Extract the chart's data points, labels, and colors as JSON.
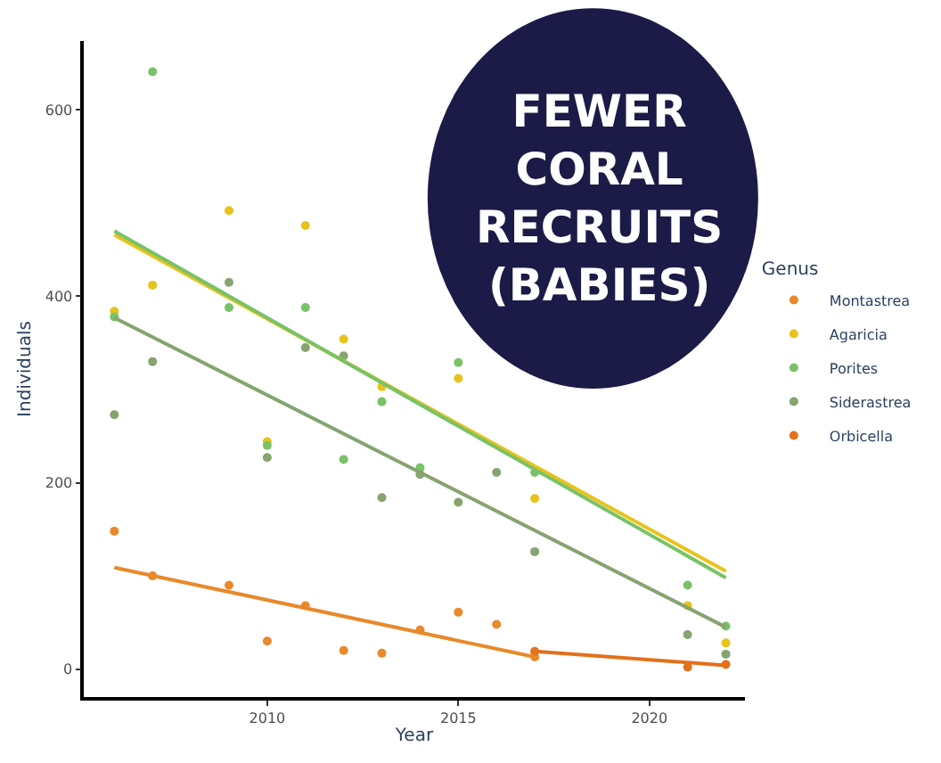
{
  "chart_data": {
    "type": "scatter",
    "xlabel": "Year",
    "ylabel": "Individuals",
    "legend_title": "Genus",
    "legend": "right",
    "xlim": [
      2005.2,
      2022.5
    ],
    "xticks": [
      2010,
      2015,
      2020
    ],
    "ylim": [
      -30,
      674
    ],
    "yticks": [
      0,
      200,
      400,
      600
    ],
    "annotations": [
      "FEWER\nCORAL\nRECRUITS\n(BABIES)"
    ],
    "series": [
      {
        "name": "Montastrea",
        "color": "#e8892b",
        "x": [
          2006,
          2007,
          2009,
          2010,
          2011,
          2012,
          2013,
          2014,
          2015,
          2016,
          2017
        ],
        "values": [
          148,
          100,
          90,
          30,
          68,
          20,
          17,
          42,
          61,
          48,
          13
        ]
      },
      {
        "name": "Agaricia",
        "color": "#e8c31a",
        "x": [
          2006,
          2007,
          2009,
          2010,
          2011,
          2012,
          2013,
          2015,
          2017,
          2021,
          2022
        ],
        "values": [
          384,
          412,
          492,
          244,
          476,
          354,
          303,
          312,
          183,
          68,
          28
        ]
      },
      {
        "name": "Porites",
        "color": "#79c267",
        "x": [
          2006,
          2007,
          2009,
          2010,
          2011,
          2012,
          2013,
          2014,
          2015,
          2017,
          2021,
          2022
        ],
        "values": [
          378,
          641,
          388,
          240,
          388,
          225,
          287,
          216,
          329,
          211,
          90,
          46
        ]
      },
      {
        "name": "Siderastrea",
        "color": "#87a36f",
        "x": [
          2006,
          2007,
          2009,
          2010,
          2011,
          2012,
          2013,
          2014,
          2015,
          2016,
          2017,
          2021,
          2022
        ],
        "values": [
          273,
          330,
          415,
          227,
          345,
          336,
          184,
          209,
          179,
          211,
          126,
          37,
          16
        ]
      },
      {
        "name": "Orbicella",
        "color": "#e3701a",
        "x": [
          2017,
          2021,
          2022
        ],
        "values": [
          19,
          2,
          5
        ]
      },
      {
        "type": "line",
        "marker": "none",
        "color": "#e8892b",
        "x": [
          2006,
          2017
        ],
        "values": [
          109,
          13
        ]
      },
      {
        "type": "line",
        "marker": "none",
        "color": "#e8c31a",
        "x": [
          2006,
          2022
        ],
        "values": [
          466,
          105
        ]
      },
      {
        "type": "line",
        "marker": "none",
        "color": "#79c267",
        "x": [
          2006,
          2022
        ],
        "values": [
          470,
          98
        ]
      },
      {
        "type": "line",
        "marker": "none",
        "color": "#87a36f",
        "x": [
          2006,
          2022
        ],
        "values": [
          377,
          45
        ]
      },
      {
        "type": "line",
        "marker": "none",
        "color": "#e3701a",
        "x": [
          2017,
          2022
        ],
        "values": [
          19,
          4
        ]
      }
    ]
  }
}
